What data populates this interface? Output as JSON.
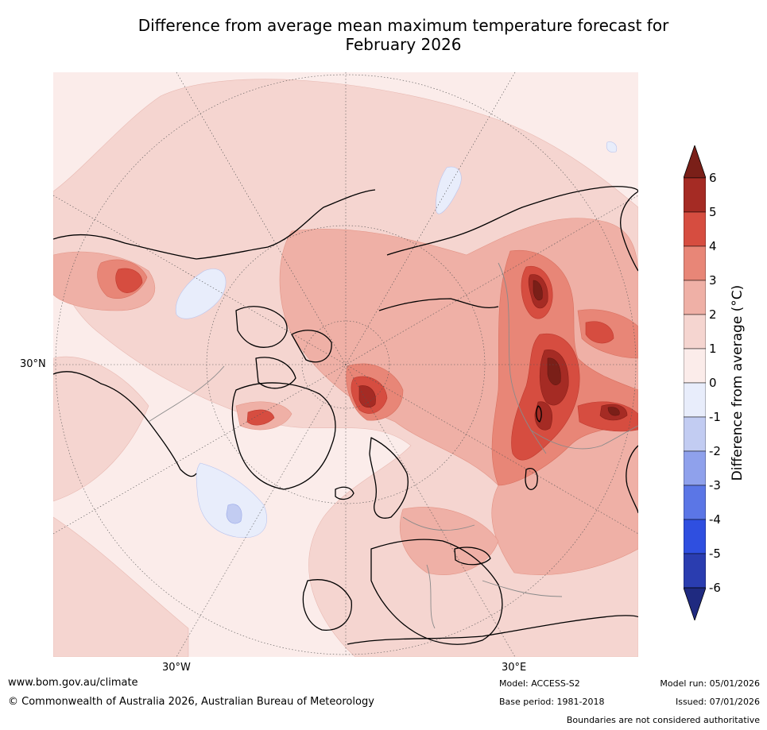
{
  "title_line1": "Difference from average mean maximum temperature forecast for",
  "title_line2": "February 2026",
  "map": {
    "lat_label": "30°N",
    "lon_labels": [
      "30°W",
      "30°E"
    ]
  },
  "colorbar": {
    "title": "Difference from average (°C)",
    "ticks": [
      "6",
      "5",
      "4",
      "3",
      "2",
      "1",
      "0",
      "-1",
      "-2",
      "-3",
      "-4",
      "-5",
      "-6"
    ],
    "colors": [
      "#7a1f18",
      "#a52b24",
      "#d64d40",
      "#e88677",
      "#efb0a6",
      "#f5d5d0",
      "#fbecea",
      "#e8edfb",
      "#c2ccf2",
      "#8fa1ec",
      "#5b76e6",
      "#2f4fe0",
      "#2a3db0",
      "#1f2a80"
    ]
  },
  "footer": {
    "website": "www.bom.gov.au/climate",
    "copyright": "© Commonwealth of Australia 2026, Australian Bureau of Meteorology",
    "model": "Model: ACCESS-S2",
    "base_period": "Base period: 1981-2018",
    "model_run": "Model run: 05/01/2026",
    "issued": "Issued: 07/01/2026",
    "disclaimer": "Boundaries are not considered authoritative"
  }
}
